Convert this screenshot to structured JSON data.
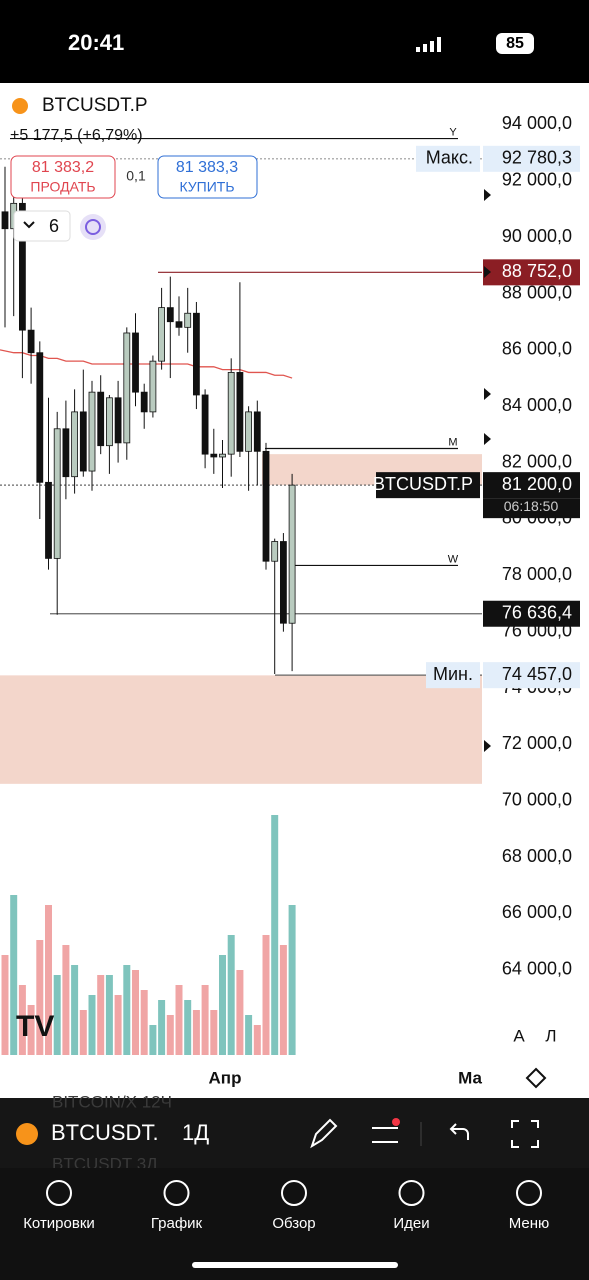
{
  "status": {
    "time": "20:41",
    "battery": "85"
  },
  "header": {
    "symbol": "BTCUSDT.P",
    "change": "+5 177,5 (+6,79%)",
    "sell_price": "81 383,2",
    "sell": "ПРОДАТЬ",
    "spread": "0,1",
    "buy_price": "81 383,3",
    "buy": "КУПИТЬ",
    "interval": "6"
  },
  "chart_data": {
    "type": "candlestick",
    "ylim": [
      95400,
      60800
    ],
    "yticks": [
      {
        "value": 94000,
        "label": "94 000,0"
      },
      {
        "value": 92000,
        "label": "92 000,0"
      },
      {
        "value": 90000,
        "label": "90 000,0"
      },
      {
        "value": 88000,
        "label": "88 000,0"
      },
      {
        "value": 86000,
        "label": "86 000,0"
      },
      {
        "value": 84000,
        "label": "84 000,0"
      },
      {
        "value": 82000,
        "label": "82 000,0"
      },
      {
        "value": 80000,
        "label": "80 000,0"
      },
      {
        "value": 78000,
        "label": "78 000,0"
      },
      {
        "value": 76000,
        "label": "76 000,0"
      },
      {
        "value": 74000,
        "label": "74 000,0"
      },
      {
        "value": 72000,
        "label": "72 000,0"
      },
      {
        "value": 70000,
        "label": "70 000,0"
      },
      {
        "value": 68000,
        "label": "68 000,0"
      },
      {
        "value": 66000,
        "label": "66 000,0"
      },
      {
        "value": 64000,
        "label": "64 000,0"
      }
    ],
    "up_color": "#b9cbbf",
    "down_color": "#111111",
    "open": [
      90900,
      90300,
      91200,
      86700,
      85900,
      81300,
      78600,
      83200,
      81500,
      83800,
      81700,
      84500,
      82600,
      84300,
      82700,
      86600,
      84500,
      83800,
      85600,
      87500,
      87000,
      86800,
      87300,
      84400,
      82300,
      82200,
      82300,
      85200,
      82400,
      83800,
      82400,
      78500,
      79200,
      76300
    ],
    "high": [
      92500,
      92800,
      91500,
      87500,
      86300,
      84300,
      83800,
      84200,
      84600,
      85300,
      84900,
      85100,
      84400,
      84900,
      86800,
      87300,
      84800,
      85800,
      88200,
      88600,
      87900,
      88200,
      87700,
      84600,
      83200,
      82800,
      85700,
      88400,
      84000,
      84200,
      82700,
      79300,
      79500,
      81600
    ],
    "low": [
      86800,
      87200,
      85000,
      84800,
      80000,
      78200,
      76600,
      80700,
      80900,
      81500,
      81000,
      82300,
      81600,
      82000,
      82100,
      84000,
      83200,
      83600,
      85300,
      85000,
      86500,
      85900,
      83900,
      81800,
      81600,
      81100,
      81500,
      82200,
      81000,
      81200,
      78200,
      74500,
      76000,
      74600
    ],
    "close": [
      90300,
      91200,
      86700,
      85900,
      81300,
      78600,
      83200,
      81500,
      83800,
      81700,
      84500,
      82600,
      84300,
      82700,
      86600,
      84500,
      83800,
      85600,
      87500,
      87000,
      86800,
      87300,
      84400,
      82300,
      82200,
      82300,
      85200,
      82400,
      83800,
      82400,
      78500,
      79200,
      76300,
      81200
    ],
    "moving_average": {
      "color": "#e0554f",
      "values": [
        86000,
        85900,
        85900,
        85800,
        85800,
        85700,
        85700,
        85600,
        85600,
        85600,
        85500,
        85500,
        85500,
        85500,
        85500,
        85500,
        85500,
        85500,
        85500,
        85500,
        85500,
        85500,
        85400,
        85400,
        85400,
        85300,
        85300,
        85300,
        85200,
        85200,
        85200,
        85100,
        85100,
        85000
      ]
    },
    "volume": {
      "up_color": "#7fc4bd",
      "down_color": "#f0a5a5",
      "values": [
        100,
        160,
        70,
        50,
        115,
        150,
        80,
        110,
        90,
        45,
        60,
        80,
        80,
        60,
        90,
        85,
        65,
        30,
        55,
        40,
        70,
        55,
        45,
        70,
        45,
        100,
        120,
        85,
        40,
        30,
        120,
        240,
        110,
        150
      ]
    },
    "levels": [
      {
        "name": "Макс.",
        "value": {
          "value": 92780.3,
          "label": "92 780,3"
        },
        "color": "#e3eefa",
        "text_color": "#111111"
      },
      {
        "value": {
          "value": 88752,
          "label": "88 752,0"
        },
        "color": "#8b1e24",
        "text_color": "#ffffff"
      },
      {
        "name": "BTCUSDT.P",
        "value": {
          "value": 81200,
          "label": "81 200,0"
        },
        "countdown": "06:18:50",
        "color": "#111111",
        "text_color": "#ffffff"
      },
      {
        "value": {
          "value": 76636.4,
          "label": "76 636,4"
        },
        "color": "#111111",
        "text_color": "#ffffff"
      },
      {
        "name": "Мин.",
        "value": {
          "value": 74457,
          "label": "74 457,0"
        },
        "color": "#e3eefa",
        "text_color": "#111111"
      }
    ],
    "period_lines": [
      {
        "name": "Y",
        "value": 93500
      },
      {
        "name": "M",
        "value": 82500
      },
      {
        "name": "W",
        "value": 78350
      }
    ],
    "zones": [
      {
        "from": 81200,
        "to": 82300,
        "color": "#f3d6cb"
      },
      {
        "from": 70600,
        "to": 74450,
        "color": "#f3d6cb"
      }
    ],
    "x_labels": [
      "Апр",
      "Ма"
    ],
    "scale_buttons": [
      "А",
      "Л"
    ]
  },
  "toolbar": {
    "symbol": "BTCUSDT.",
    "interval": "1Д",
    "ghost": [
      "BITCOIN/X  12Ч",
      "BTCUSDT   3Д"
    ]
  },
  "nav": [
    "Котировки",
    "График",
    "Обзор",
    "Идеи",
    "Меню"
  ]
}
